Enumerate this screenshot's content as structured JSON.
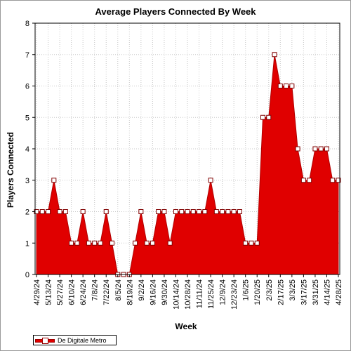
{
  "chart_data": {
    "type": "area",
    "title": "Average Players Connected By Week",
    "xlabel": "Week",
    "ylabel": "Players Connected",
    "ylim": [
      0,
      8
    ],
    "yticks": [
      "0",
      "1",
      "2",
      "3",
      "4",
      "5",
      "6",
      "7",
      "8"
    ],
    "grid": true,
    "legend_position": "bottom-left",
    "series": [
      {
        "name": "De Digitale Metro",
        "color": "#e00000",
        "values": [
          2,
          2,
          2,
          3,
          2,
          2,
          1,
          1,
          2,
          1,
          1,
          1,
          2,
          1,
          0,
          0,
          0,
          1,
          2,
          1,
          1,
          2,
          2,
          1,
          2,
          2,
          2,
          2,
          2,
          2,
          3,
          2,
          2,
          2,
          2,
          2,
          1,
          1,
          1,
          5,
          5,
          7,
          6,
          6,
          6,
          4,
          3,
          3,
          4,
          4,
          4,
          3,
          3
        ]
      }
    ],
    "tick_labels": [
      "4/29/24",
      "5/13/24",
      "5/27/24",
      "6/10/24",
      "6/24/24",
      "7/8/24",
      "7/22/24",
      "8/5/24",
      "8/19/24",
      "9/2/24",
      "9/16/24",
      "9/30/24",
      "10/14/24",
      "10/28/24",
      "11/11/24",
      "11/25/24",
      "12/9/24",
      "12/23/24",
      "1/6/25",
      "1/20/25",
      "2/3/25",
      "2/17/25",
      "3/3/25",
      "3/17/25",
      "3/31/25",
      "4/14/25",
      "4/28/25"
    ]
  }
}
